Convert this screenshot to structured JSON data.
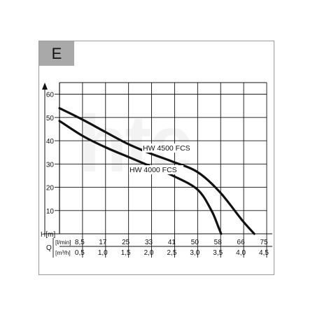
{
  "panel": {
    "label": "E",
    "watermark": "hte"
  },
  "colors": {
    "curve": "#111111",
    "grid": "#111111",
    "badge": "#a9a9a9",
    "watermark": "#f3f3f3"
  },
  "chart_data": {
    "type": "line",
    "ylabel": "H[m]",
    "xlabel": "Q",
    "x_unit_primary": "[l/min]",
    "x_unit_secondary": "[m³/h]",
    "x_ticks_primary": [
      "8,5",
      "17",
      "25",
      "33",
      "41",
      "50",
      "58",
      "66",
      "75"
    ],
    "x_ticks_secondary": [
      "0,5",
      "1,0",
      "1,5",
      "2,0",
      "2,5",
      "3,0",
      "3,5",
      "4,0",
      "4,5"
    ],
    "y_ticks": [
      "10",
      "20",
      "30",
      "40",
      "50",
      "60"
    ],
    "xlim": [
      0,
      75
    ],
    "ylim": [
      0,
      65
    ],
    "grid": true,
    "series": [
      {
        "name": "HW 4500 FCS",
        "x": [
          0,
          8.5,
          17,
          25,
          33,
          41,
          50,
          58,
          66,
          70.5
        ],
        "y": [
          54,
          49,
          43.5,
          38.5,
          34.5,
          31,
          26.5,
          18,
          6,
          0
        ]
      },
      {
        "name": "HW 4000 FCS",
        "x": [
          0,
          8.5,
          17,
          25,
          33,
          41,
          50,
          55,
          57.5,
          58.5
        ],
        "y": [
          48.5,
          42,
          37,
          33,
          29,
          25,
          19,
          10,
          3,
          0
        ]
      }
    ]
  }
}
